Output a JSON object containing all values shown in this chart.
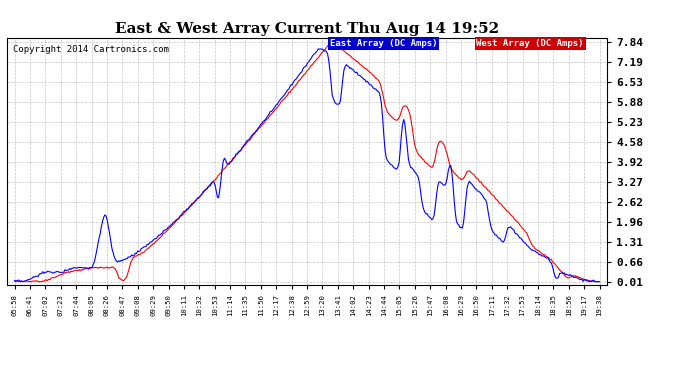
{
  "title": "East & West Array Current Thu Aug 14 19:52",
  "copyright": "Copyright 2014 Cartronics.com",
  "legend_east": "East Array (DC Amps)",
  "legend_west": "West Array (DC Amps)",
  "east_color": "#0000ff",
  "west_color": "#ff0000",
  "legend_east_bg": "#0000cc",
  "legend_west_bg": "#cc0000",
  "ylabel_values": [
    0.01,
    0.66,
    1.31,
    1.96,
    2.62,
    3.27,
    3.92,
    4.58,
    5.23,
    5.88,
    6.53,
    7.19,
    7.84
  ],
  "ytick_labels": [
    "0.01",
    "0.66",
    "1.31",
    "1.96",
    "2.62",
    "3.27",
    "3.92",
    "4.58",
    "5.23",
    "5.88",
    "6.53",
    "7.19",
    "7.84"
  ],
  "ylim": [
    -0.1,
    8.0
  ],
  "background_color": "#ffffff",
  "grid_color": "#aaaaaa",
  "xtick_labels": [
    "05:58",
    "06:41",
    "07:02",
    "07:23",
    "07:44",
    "08:05",
    "08:26",
    "08:47",
    "09:08",
    "09:29",
    "09:50",
    "10:11",
    "10:32",
    "10:53",
    "11:14",
    "11:35",
    "11:56",
    "12:17",
    "12:38",
    "12:59",
    "13:20",
    "13:41",
    "14:02",
    "14:23",
    "14:44",
    "15:05",
    "15:26",
    "15:47",
    "16:08",
    "16:29",
    "16:50",
    "17:11",
    "17:32",
    "17:53",
    "18:14",
    "18:35",
    "18:56",
    "19:17",
    "19:38"
  ],
  "n_xticks": 39
}
